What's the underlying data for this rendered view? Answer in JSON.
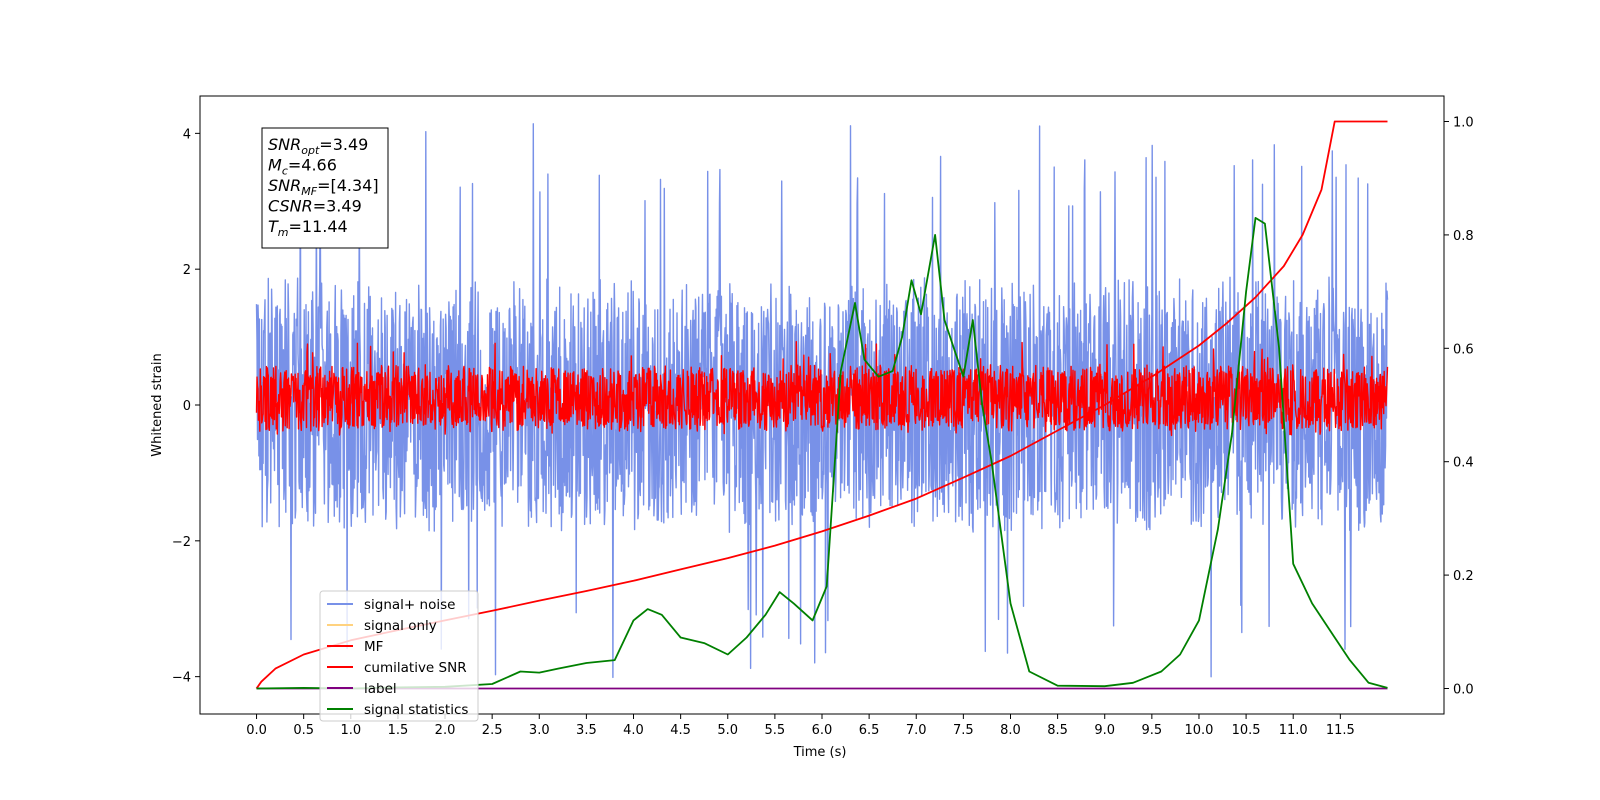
{
  "chart_data": {
    "type": "line",
    "title": "",
    "xlabel": "Time (s)",
    "ylabel": "Whitened strain",
    "xlim": [
      -0.6,
      12.6
    ],
    "ylim": [
      -4.55,
      4.55
    ],
    "y2lim": [
      -0.045,
      1.045
    ],
    "x_ticks": [
      "0.0",
      "0.5",
      "1.0",
      "1.5",
      "2.0",
      "2.5",
      "3.0",
      "3.5",
      "4.0",
      "4.5",
      "5.0",
      "5.5",
      "6.0",
      "6.5",
      "7.0",
      "7.5",
      "8.0",
      "8.5",
      "9.0",
      "9.5",
      "10.0",
      "10.5",
      "11.0",
      "11.5"
    ],
    "y_ticks": [
      "−4",
      "−2",
      "0",
      "2",
      "4"
    ],
    "y2_ticks": [
      "0.0",
      "0.2",
      "0.4",
      "0.6",
      "0.8",
      "1.0"
    ],
    "grid": false,
    "legend_position": "lower-left",
    "series": [
      {
        "name": "signal+ noise",
        "color": "#7891e8",
        "axis": "left",
        "kind": "noise",
        "x_range": [
          0,
          12
        ],
        "band": [
          -1.9,
          1.9
        ],
        "peak_max": 4.15,
        "peak_min": -4.1
      },
      {
        "name": "signal only",
        "color": "#ffd27f",
        "axis": "left",
        "kind": "hidden"
      },
      {
        "name": "MF",
        "color": "#ff0000",
        "axis": "left",
        "kind": "noise",
        "x_range": [
          0,
          12
        ],
        "band": [
          -0.4,
          0.6
        ],
        "peak_max": 0.95,
        "peak_min": -0.45
      },
      {
        "name": "cumilative SNR",
        "color": "#ff0000",
        "axis": "right",
        "kind": "line",
        "x": [
          0,
          0.05,
          0.2,
          0.5,
          1.0,
          1.5,
          2.0,
          2.5,
          3.0,
          3.5,
          4.0,
          4.5,
          5.0,
          5.5,
          6.0,
          6.5,
          7.0,
          7.5,
          8.0,
          8.5,
          9.0,
          9.5,
          10.0,
          10.3,
          10.6,
          10.9,
          11.1,
          11.3,
          11.44,
          12.0
        ],
        "y": [
          0.0,
          0.012,
          0.035,
          0.06,
          0.085,
          0.103,
          0.12,
          0.137,
          0.155,
          0.172,
          0.19,
          0.21,
          0.23,
          0.252,
          0.277,
          0.305,
          0.335,
          0.372,
          0.41,
          0.455,
          0.5,
          0.55,
          0.605,
          0.645,
          0.69,
          0.745,
          0.8,
          0.88,
          1.0,
          1.0
        ]
      },
      {
        "name": "label",
        "color": "#800080",
        "axis": "right",
        "kind": "line",
        "x": [
          0,
          12
        ],
        "y": [
          0.0,
          0.0
        ]
      },
      {
        "name": "signal statistics",
        "color": "#008000",
        "axis": "right",
        "kind": "line",
        "x": [
          0,
          0.5,
          1.0,
          1.5,
          2.0,
          2.5,
          2.8,
          3.0,
          3.2,
          3.5,
          3.8,
          4.0,
          4.15,
          4.3,
          4.5,
          4.75,
          5.0,
          5.2,
          5.4,
          5.55,
          5.7,
          5.9,
          6.05,
          6.2,
          6.35,
          6.45,
          6.6,
          6.75,
          6.85,
          6.95,
          7.05,
          7.2,
          7.3,
          7.4,
          7.5,
          7.6,
          7.7,
          7.8,
          8.0,
          8.2,
          8.5,
          9.0,
          9.3,
          9.6,
          9.8,
          10.0,
          10.2,
          10.35,
          10.5,
          10.6,
          10.7,
          10.85,
          11.0,
          11.2,
          11.4,
          11.6,
          11.8,
          12.0
        ],
        "y": [
          0.0,
          0.001,
          0.0,
          0.002,
          0.003,
          0.008,
          0.03,
          0.028,
          0.035,
          0.045,
          0.05,
          0.12,
          0.14,
          0.13,
          0.09,
          0.08,
          0.06,
          0.09,
          0.13,
          0.17,
          0.15,
          0.12,
          0.18,
          0.56,
          0.68,
          0.58,
          0.55,
          0.56,
          0.62,
          0.72,
          0.66,
          0.8,
          0.65,
          0.6,
          0.55,
          0.65,
          0.5,
          0.4,
          0.15,
          0.03,
          0.005,
          0.004,
          0.01,
          0.03,
          0.06,
          0.12,
          0.28,
          0.45,
          0.7,
          0.83,
          0.82,
          0.6,
          0.22,
          0.15,
          0.1,
          0.05,
          0.01,
          0.001
        ]
      }
    ],
    "annotation_lines": [
      {
        "main": "SNR",
        "sub": "opt",
        "rest": "=3.49"
      },
      {
        "main": "M",
        "sub": "c",
        "rest": "=4.66"
      },
      {
        "main": "SNR",
        "sub": "MF",
        "rest": "=[4.34]"
      },
      {
        "main": "CSNR",
        "sub": "",
        "rest": "=3.49"
      },
      {
        "main": "T",
        "sub": "m",
        "rest": "=11.44"
      }
    ]
  }
}
